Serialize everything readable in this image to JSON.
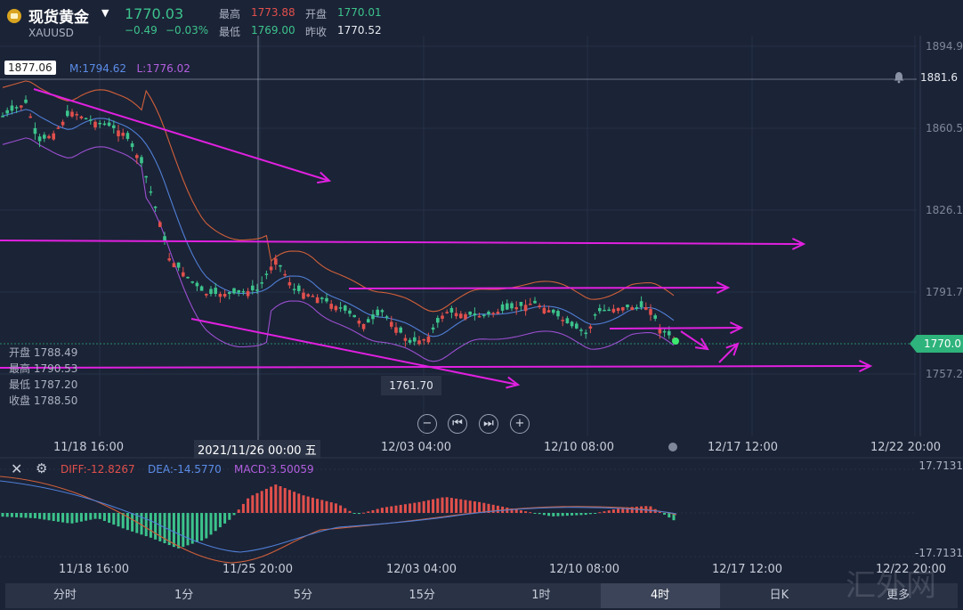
{
  "header": {
    "title": "现货黄金",
    "symbol": "XAUUSD",
    "price": "1770.03",
    "change": "−0.49",
    "change_pct": "−0.03%",
    "quote": {
      "high_label": "最高",
      "high": "1773.88",
      "open_label": "开盘",
      "open": "1770.01",
      "low_label": "最低",
      "low": "1769.00",
      "prev_close_label": "昨收",
      "prev_close": "1770.52"
    }
  },
  "chart": {
    "high_marker": "1877.06",
    "ma_labels": {
      "m": "M:1794.62",
      "l": "L:1776.02"
    },
    "alert_price": "1881.6",
    "current_price": "1770.0",
    "low_marker": "1761.70",
    "price_axis": [
      "1894.9",
      "1860.5",
      "1826.1",
      "1791.7",
      "1757.2"
    ],
    "crosshair_ohlc": {
      "open": "开盘 1788.49",
      "high": "最高 1790.53",
      "low": "最低 1787.20",
      "close": "收盘 1788.50"
    },
    "time_axis": [
      "11/18 16:00",
      "12/03 04:00",
      "12/10 08:00",
      "12/17 12:00",
      "12/22 20:00"
    ],
    "selected_time": "2021/11/26 00:00 五"
  },
  "macd": {
    "diff": "DIFF:-12.8267",
    "dea": "DEA:-14.5770",
    "macd": "MACD:3.50059",
    "top": "17.7131",
    "bottom": "-17.7131",
    "time_axis": [
      "11/18 16:00",
      "11/25 20:00",
      "12/03 04:00",
      "12/10 08:00",
      "12/17 12:00",
      "12/22 20:00"
    ]
  },
  "tabs": [
    "分时",
    "1分",
    "5分",
    "15分",
    "1时",
    "4时",
    "日K",
    "更多"
  ],
  "active_tab": "4时",
  "watermark": "汇外网",
  "colors": {
    "up": "#e2504c",
    "down": "#3cc38c",
    "annotation": "#e020e0",
    "bg": "#1b2336"
  }
}
